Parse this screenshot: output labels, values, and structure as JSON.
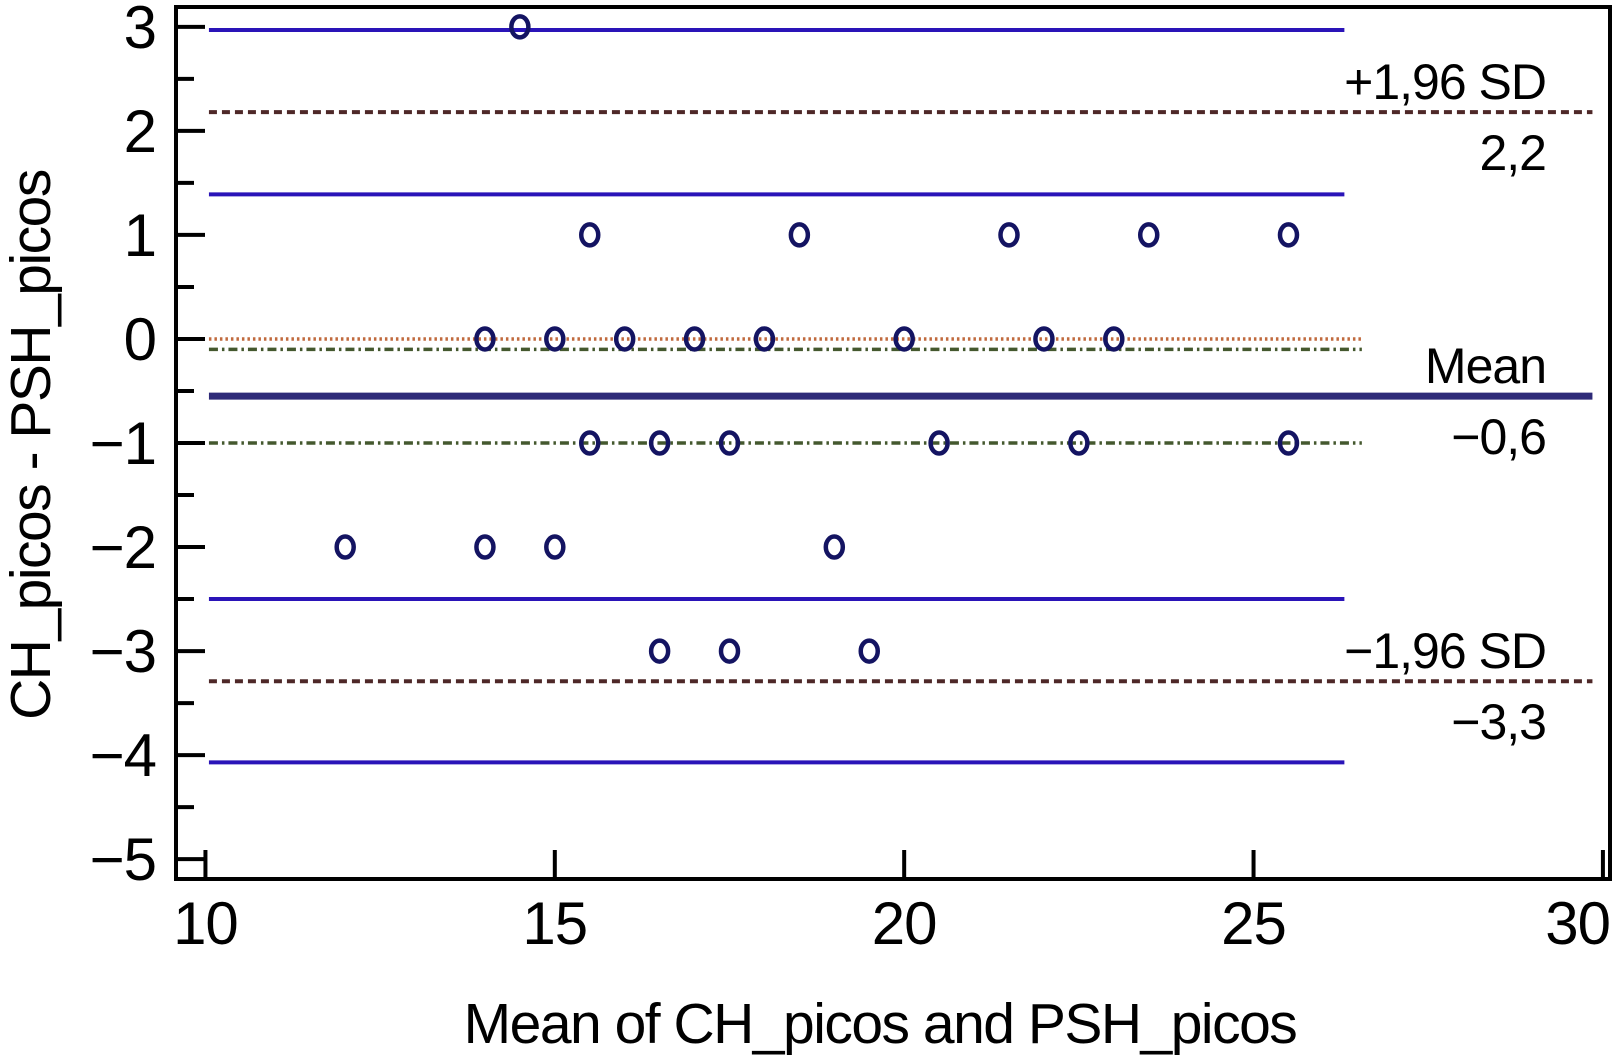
{
  "chart_data": {
    "type": "scatter",
    "title": "",
    "xlabel": "Mean of CH_picos and PSH_picos",
    "ylabel": "CH_picos - PSH_picos",
    "xlim": [
      9.55,
      30.13
    ],
    "ylim": [
      -5.21,
      3.21
    ],
    "grid": false,
    "legend": "none",
    "x_ticks": {
      "values": [
        10,
        15,
        20,
        25,
        30
      ],
      "labels": [
        "10",
        "15",
        "20",
        "25",
        "30"
      ]
    },
    "y_ticks": {
      "values": [
        3,
        2,
        1,
        0,
        -1,
        -2,
        -3,
        -4,
        -5
      ],
      "labels": [
        "3",
        "2",
        "1",
        "0",
        "−1",
        "−2",
        "−3",
        "−4",
        "−5"
      ]
    },
    "y_minor_ticks": [
      2.5,
      1.5,
      0.5,
      -0.5,
      -1.5,
      -2.5,
      -3.5,
      -4.5
    ],
    "points": [
      [
        14.5,
        3
      ],
      [
        15.5,
        1
      ],
      [
        18.5,
        1
      ],
      [
        21.5,
        1
      ],
      [
        23.5,
        1
      ],
      [
        25.5,
        1
      ],
      [
        14,
        0
      ],
      [
        15,
        0
      ],
      [
        16,
        0
      ],
      [
        17,
        0
      ],
      [
        18,
        0
      ],
      [
        20,
        0
      ],
      [
        22,
        0
      ],
      [
        23,
        0
      ],
      [
        15.5,
        -1
      ],
      [
        16.5,
        -1
      ],
      [
        17.5,
        -1
      ],
      [
        20.5,
        -1
      ],
      [
        22.5,
        -1
      ],
      [
        25.5,
        -1
      ],
      [
        12,
        -2
      ],
      [
        14,
        -2
      ],
      [
        15,
        -2
      ],
      [
        19,
        -2
      ],
      [
        16.5,
        -3
      ],
      [
        17.5,
        -3
      ],
      [
        19.5,
        -3
      ]
    ],
    "reference_lines": [
      {
        "id": "upper-loa-ci-upper",
        "role": "ci",
        "value": 2.97,
        "x_start": 10.05,
        "x_end": 26.3,
        "label": "",
        "value_label": ""
      },
      {
        "id": "upper-loa",
        "role": "loa",
        "value": 2.18,
        "x_start": 10.05,
        "x_end": 29.85,
        "label": "+1,96 SD",
        "value_label": "2,2"
      },
      {
        "id": "upper-loa-ci-lower",
        "role": "ci",
        "value": 1.39,
        "x_start": 10.05,
        "x_end": 26.3,
        "label": "",
        "value_label": ""
      },
      {
        "id": "zero-bias",
        "role": "zero",
        "value": 0.0,
        "x_start": 10.05,
        "x_end": 26.55,
        "label": "",
        "value_label": ""
      },
      {
        "id": "mean-ci-upper",
        "role": "mean_ci",
        "value": -0.1,
        "x_start": 10.05,
        "x_end": 26.55,
        "label": "",
        "value_label": ""
      },
      {
        "id": "mean",
        "role": "mean",
        "value": -0.55,
        "x_start": 10.05,
        "x_end": 29.85,
        "label": "Mean",
        "value_label": "−0,6"
      },
      {
        "id": "mean-ci-lower",
        "role": "mean_ci",
        "value": -1.0,
        "x_start": 10.05,
        "x_end": 26.55,
        "label": "",
        "value_label": ""
      },
      {
        "id": "lower-loa-ci-upper",
        "role": "ci",
        "value": -2.5,
        "x_start": 10.05,
        "x_end": 26.3,
        "label": "",
        "value_label": ""
      },
      {
        "id": "lower-loa",
        "role": "loa",
        "value": -3.29,
        "x_start": 10.05,
        "x_end": 29.85,
        "label": "−1,96 SD",
        "value_label": "−3,3"
      },
      {
        "id": "lower-loa-ci-lower",
        "role": "ci",
        "value": -4.07,
        "x_start": 10.05,
        "x_end": 26.3,
        "label": "",
        "value_label": ""
      }
    ],
    "colors": {
      "ci_line": "#2a14b8",
      "loa_line": "#4e2828",
      "mean_line": "#2e2a78",
      "zero_line": "#c06a3e",
      "mean_ci_line": "#44582e",
      "point_stroke": "#141462",
      "axis": "#000000"
    }
  }
}
